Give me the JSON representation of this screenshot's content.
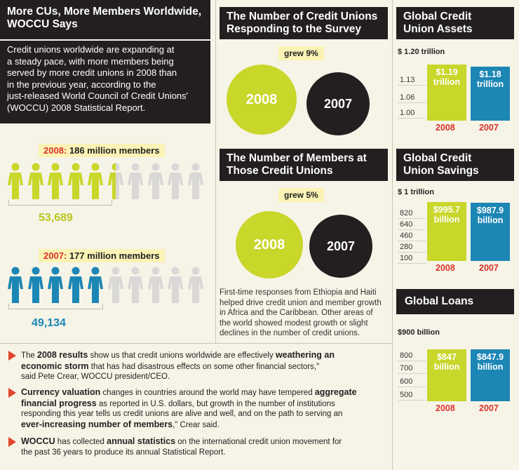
{
  "left": {
    "title_line1": "More CUs, More Members Worldwide,",
    "title_line2": "WOCCU Says",
    "intro_lines": [
      "Credit unions worldwide are expanding at",
      "a steady pace, with more members being",
      "served by more credit unions in 2008 than",
      "in the previous year, according to the",
      "just-released World Council of Credit Unions'",
      "(WOCCU) 2008 Statistical Report."
    ],
    "year2008": "2008:",
    "members2008": "186 million members",
    "cu2008": "53,689",
    "year2007": "2007:",
    "members2007": "177 million members",
    "cu2007": "49,134"
  },
  "middle": {
    "title1_line1": "The Number of Credit Unions",
    "title1_line2": "Responding to the Survey",
    "grew1": "grew 9%",
    "circle_2008": "2008",
    "circle_2007": "2007",
    "title2_line1": "The Number of Members at",
    "title2_line2": "Those Credit Unions",
    "grew2": "grew 5%",
    "para_lines": [
      "First-time responses from Ethiopia and Haiti",
      "helped drive credit union and member growth",
      "in Africa and the Caribbean. Other areas of",
      "the world showed modest growth or slight",
      "declines in the number of credit unions."
    ]
  },
  "quotes": [
    {
      "parts": [
        {
          "t": "The ",
          "b": false
        },
        {
          "t": "2008 results",
          "b": true
        },
        {
          "t": " show us that credit unions worldwide are effectively ",
          "b": false
        },
        {
          "t": "weathering an",
          "b": true
        }
      ],
      "line2": [
        {
          "t": "economic storm",
          "b": true
        },
        {
          "t": " that has had disastrous effects on some other financial sectors,\"",
          "b": false
        }
      ],
      "line3": [
        {
          "t": "said Pete Crear, WOCCU president/CEO.",
          "b": false
        }
      ]
    },
    {
      "parts": [
        {
          "t": "Currency valuation",
          "b": true
        },
        {
          "t": " changes in countries around the world may have tempered ",
          "b": false
        },
        {
          "t": "aggregate",
          "b": true
        }
      ],
      "line2": [
        {
          "t": "financial progress",
          "b": true
        },
        {
          "t": " as reported in U.S. dollars, but growth in the number of institutions",
          "b": false
        }
      ],
      "line3": [
        {
          "t": "responding this year tells us credit unions are alive and well, and on the path to serving an",
          "b": false
        }
      ],
      "line4": [
        {
          "t": "ever-increasing number of members",
          "b": true
        },
        {
          "t": ",\" Crear said.",
          "b": false
        }
      ]
    },
    {
      "parts": [
        {
          "t": "WOCCU",
          "b": true
        },
        {
          "t": " has collected ",
          "b": false
        },
        {
          "t": "annual statistics",
          "b": true
        },
        {
          "t": " on the international credit union movement for",
          "b": false
        }
      ],
      "line2": [
        {
          "t": "the past 36 years to produce its annual Statistical Report.",
          "b": false
        }
      ]
    }
  ],
  "colors": {
    "green": "#c9d62a",
    "blue": "#1c86b5",
    "black": "#231f20",
    "red": "#d8322a"
  },
  "chart_data": [
    {
      "type": "bar",
      "title": "Global Credit Union Assets",
      "scale_label": "$ 1.20 trillion",
      "categories": [
        "2008",
        "2007"
      ],
      "values": [
        1.19,
        1.18
      ],
      "value_labels": [
        "$1.19 trillion",
        "$1.18 trillion"
      ],
      "ylim": [
        0.97,
        1.2
      ],
      "yticks": [
        "1.13",
        "1.06",
        "1.00"
      ],
      "ytick_values": [
        1.13,
        1.06,
        1.0
      ]
    },
    {
      "type": "bar",
      "title": "Global Credit Union Savings",
      "scale_label": "$ 1 trillion",
      "categories": [
        "2008",
        "2007"
      ],
      "values": [
        995.7,
        987.9
      ],
      "value_labels": [
        "$995.7 billion",
        "$987.9 billion"
      ],
      "ylim": [
        60,
        1000
      ],
      "yticks": [
        "820",
        "640",
        "460",
        "280",
        "100"
      ],
      "ytick_values": [
        820,
        640,
        460,
        280,
        100
      ]
    },
    {
      "type": "bar",
      "title": "Global Loans",
      "scale_label": "$900 billion",
      "categories": [
        "2008",
        "2007"
      ],
      "values": [
        847,
        847.9
      ],
      "value_labels": [
        "$847 billion",
        "$847.9 billion"
      ],
      "ylim": [
        450,
        900
      ],
      "yticks": [
        "800",
        "700",
        "600",
        "500"
      ],
      "ytick_values": [
        800,
        700,
        600,
        500
      ]
    }
  ],
  "people": {
    "total": 10,
    "filled2008": 5.5,
    "filled2007": 5
  }
}
